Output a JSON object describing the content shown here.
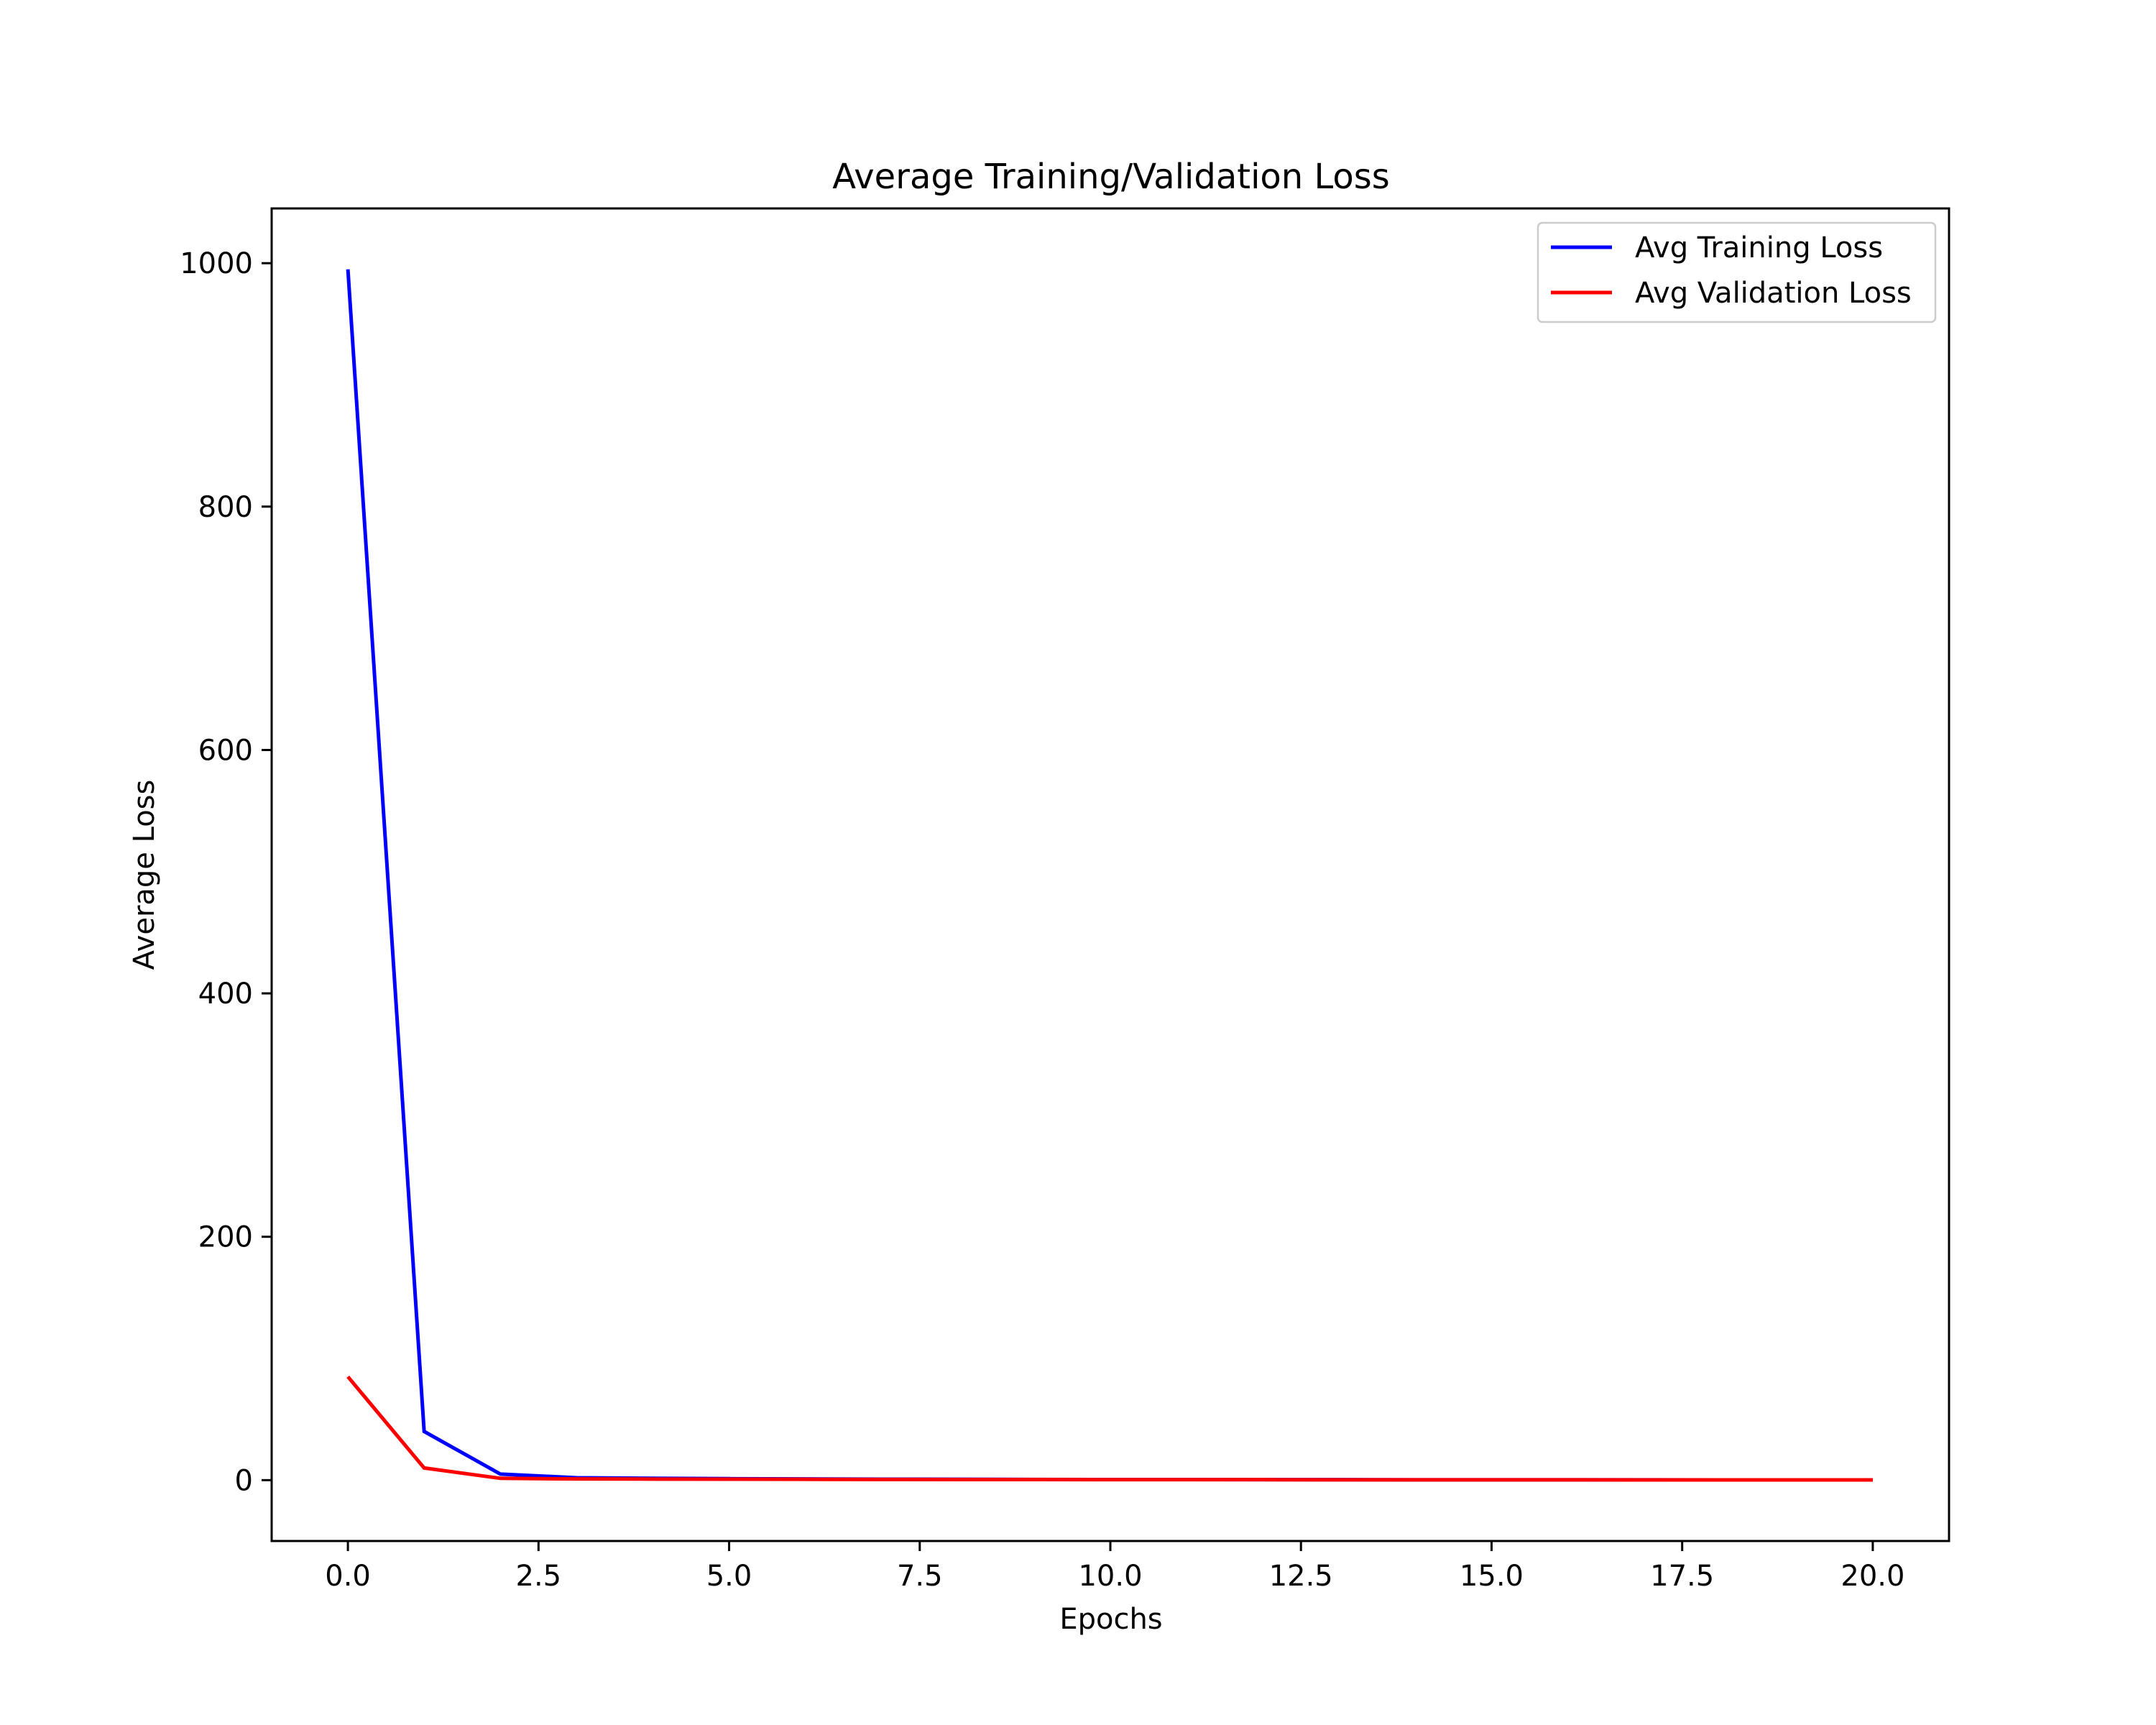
{
  "chart_data": {
    "type": "line",
    "title": "Average Training/Validation Loss",
    "xlabel": "Epochs",
    "ylabel": "Average Loss",
    "xlim": [
      -1,
      21
    ],
    "ylim": [
      -50,
      1045
    ],
    "xticks": [
      0.0,
      2.5,
      5.0,
      7.5,
      10.0,
      12.5,
      15.0,
      17.5,
      20.0
    ],
    "xtick_labels": [
      "0.0",
      "2.5",
      "5.0",
      "7.5",
      "10.0",
      "12.5",
      "15.0",
      "17.5",
      "20.0"
    ],
    "yticks": [
      0,
      200,
      400,
      600,
      800,
      1000
    ],
    "ytick_labels": [
      "0",
      "200",
      "400",
      "600",
      "800",
      "1000"
    ],
    "grid": false,
    "legend_position": "top-right",
    "x": [
      0,
      1,
      2,
      3,
      4,
      5,
      6,
      7,
      8,
      9,
      10,
      11,
      12,
      13,
      14,
      15,
      16,
      17,
      18,
      19,
      20
    ],
    "series": [
      {
        "name": "Avg Training Loss",
        "color": "#0000ff",
        "values": [
          995,
          40,
          5,
          2,
          1.5,
          1.2,
          1,
          0.8,
          0.7,
          0.6,
          0.5,
          0.5,
          0.4,
          0.4,
          0.3,
          0.3,
          0.3,
          0.3,
          0.2,
          0.2,
          0.2
        ]
      },
      {
        "name": "Avg Validation Loss",
        "color": "#ff0000",
        "values": [
          85,
          10,
          1.5,
          1,
          0.9,
          0.8,
          0.7,
          0.6,
          0.5,
          0.5,
          0.4,
          0.4,
          0.4,
          0.3,
          0.3,
          0.3,
          0.3,
          0.2,
          0.2,
          0.2,
          0.2
        ]
      }
    ]
  }
}
